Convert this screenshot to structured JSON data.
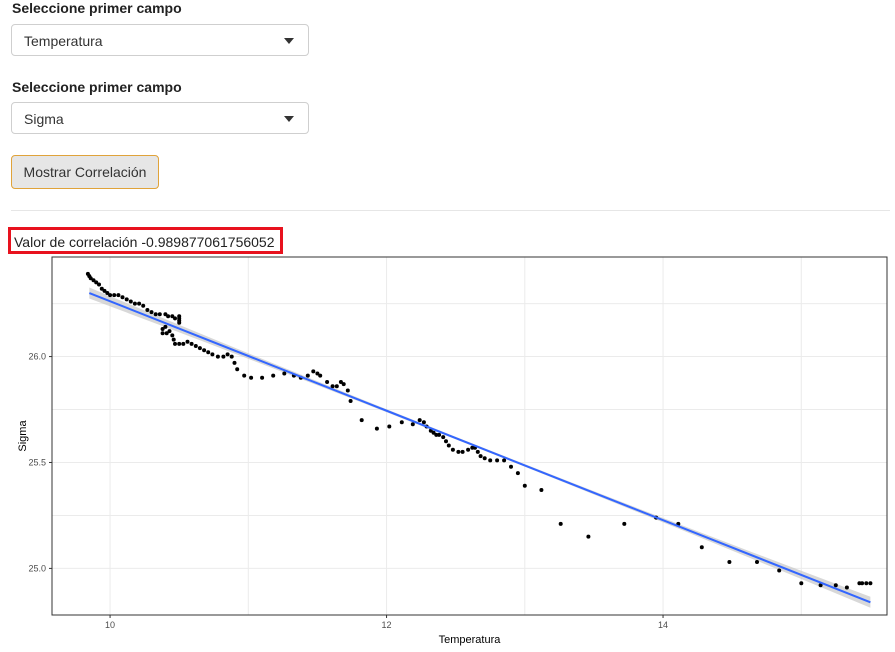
{
  "controls": {
    "field1": {
      "label": "Seleccione primer campo",
      "value": "Temperatura"
    },
    "field2": {
      "label": "Seleccione primer campo",
      "value": "Sigma"
    },
    "button_label": "Mostrar Correlación",
    "correlation_prefix": "Valor de correlación",
    "correlation_value": "-0.989877061756052",
    "dropdown_icon": "caret-down-icon"
  },
  "chart_data": {
    "type": "scatter",
    "xlabel": "Temperatura",
    "ylabel": "Sigma",
    "xlim": [
      9.58,
      15.62
    ],
    "ylim": [
      24.78,
      26.47
    ],
    "xticks": [
      10,
      12,
      14
    ],
    "yticks": [
      25.0,
      25.5,
      26.0
    ],
    "xtick_labels": [
      "10",
      "12",
      "14"
    ],
    "ytick_labels": [
      "25.0",
      "25.5",
      "26.0"
    ],
    "grid": true,
    "colors": {
      "points": "#000000",
      "fit": "#3366ff",
      "ribbon": "#c8c8c8",
      "panel_border": "#333333",
      "grid": "#ebebeb"
    },
    "regression": {
      "x": [
        9.85,
        15.5
      ],
      "y": [
        26.3,
        24.84
      ]
    },
    "points": [
      [
        9.84,
        26.39
      ],
      [
        9.85,
        26.38
      ],
      [
        9.86,
        26.37
      ],
      [
        9.88,
        26.36
      ],
      [
        9.9,
        26.35
      ],
      [
        9.92,
        26.34
      ],
      [
        9.94,
        26.32
      ],
      [
        9.96,
        26.31
      ],
      [
        9.98,
        26.3
      ],
      [
        10.0,
        26.29
      ],
      [
        10.03,
        26.29
      ],
      [
        10.06,
        26.29
      ],
      [
        10.09,
        26.28
      ],
      [
        10.12,
        26.27
      ],
      [
        10.15,
        26.26
      ],
      [
        10.18,
        26.25
      ],
      [
        10.21,
        26.25
      ],
      [
        10.24,
        26.24
      ],
      [
        10.27,
        26.22
      ],
      [
        10.3,
        26.21
      ],
      [
        10.33,
        26.2
      ],
      [
        10.36,
        26.2
      ],
      [
        10.4,
        26.2
      ],
      [
        10.42,
        26.19
      ],
      [
        10.45,
        26.19
      ],
      [
        10.47,
        26.18
      ],
      [
        10.5,
        26.17
      ],
      [
        10.5,
        26.18
      ],
      [
        10.5,
        26.16
      ],
      [
        10.5,
        26.19
      ],
      [
        10.38,
        26.13
      ],
      [
        10.4,
        26.14
      ],
      [
        10.38,
        26.11
      ],
      [
        10.41,
        26.11
      ],
      [
        10.43,
        26.12
      ],
      [
        10.45,
        26.1
      ],
      [
        10.46,
        26.08
      ],
      [
        10.47,
        26.06
      ],
      [
        10.5,
        26.06
      ],
      [
        10.53,
        26.06
      ],
      [
        10.56,
        26.07
      ],
      [
        10.59,
        26.06
      ],
      [
        10.62,
        26.05
      ],
      [
        10.65,
        26.04
      ],
      [
        10.68,
        26.03
      ],
      [
        10.71,
        26.02
      ],
      [
        10.74,
        26.01
      ],
      [
        10.78,
        26.0
      ],
      [
        10.82,
        26.0
      ],
      [
        10.85,
        26.01
      ],
      [
        10.88,
        26.0
      ],
      [
        10.9,
        25.97
      ],
      [
        10.92,
        25.94
      ],
      [
        10.97,
        25.91
      ],
      [
        11.02,
        25.9
      ],
      [
        11.1,
        25.9
      ],
      [
        11.18,
        25.91
      ],
      [
        11.26,
        25.92
      ],
      [
        11.33,
        25.91
      ],
      [
        11.38,
        25.9
      ],
      [
        11.43,
        25.91
      ],
      [
        11.47,
        25.93
      ],
      [
        11.5,
        25.92
      ],
      [
        11.52,
        25.91
      ],
      [
        11.57,
        25.88
      ],
      [
        11.61,
        25.86
      ],
      [
        11.64,
        25.86
      ],
      [
        11.67,
        25.88
      ],
      [
        11.69,
        25.87
      ],
      [
        11.72,
        25.84
      ],
      [
        11.74,
        25.79
      ],
      [
        11.82,
        25.7
      ],
      [
        11.93,
        25.66
      ],
      [
        12.02,
        25.67
      ],
      [
        12.11,
        25.69
      ],
      [
        12.19,
        25.68
      ],
      [
        12.24,
        25.7
      ],
      [
        12.27,
        25.69
      ],
      [
        12.29,
        25.67
      ],
      [
        12.32,
        25.65
      ],
      [
        12.34,
        25.64
      ],
      [
        12.36,
        25.63
      ],
      [
        12.38,
        25.63
      ],
      [
        12.41,
        25.62
      ],
      [
        12.43,
        25.6
      ],
      [
        12.45,
        25.58
      ],
      [
        12.48,
        25.56
      ],
      [
        12.52,
        25.55
      ],
      [
        12.55,
        25.55
      ],
      [
        12.59,
        25.56
      ],
      [
        12.62,
        25.57
      ],
      [
        12.64,
        25.57
      ],
      [
        12.66,
        25.55
      ],
      [
        12.68,
        25.53
      ],
      [
        12.71,
        25.52
      ],
      [
        12.75,
        25.51
      ],
      [
        12.8,
        25.51
      ],
      [
        12.85,
        25.51
      ],
      [
        12.9,
        25.48
      ],
      [
        12.95,
        25.45
      ],
      [
        13.0,
        25.39
      ],
      [
        13.12,
        25.37
      ],
      [
        13.26,
        25.21
      ],
      [
        13.46,
        25.15
      ],
      [
        13.72,
        25.21
      ],
      [
        13.95,
        25.24
      ],
      [
        14.11,
        25.21
      ],
      [
        14.28,
        25.1
      ],
      [
        14.48,
        25.03
      ],
      [
        14.68,
        25.03
      ],
      [
        14.84,
        24.99
      ],
      [
        15.0,
        24.93
      ],
      [
        15.14,
        24.92
      ],
      [
        15.25,
        24.92
      ],
      [
        15.33,
        24.91
      ],
      [
        15.42,
        24.93
      ],
      [
        15.44,
        24.93
      ],
      [
        15.47,
        24.93
      ],
      [
        15.5,
        24.93
      ]
    ]
  }
}
